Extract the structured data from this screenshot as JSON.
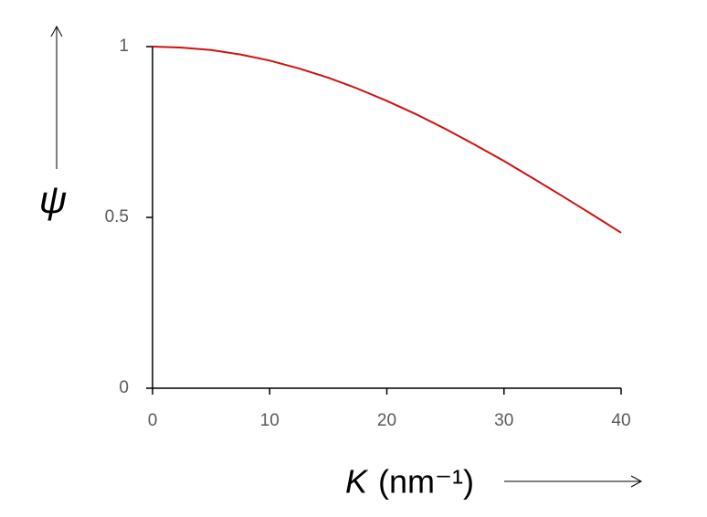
{
  "chart_data": {
    "type": "line",
    "y_label": "ψ",
    "x_label_symbol": "K",
    "x_label_unit": "(nm⁻¹)",
    "x": [
      0,
      2.5,
      5,
      7.5,
      10,
      12.5,
      15,
      17.5,
      20,
      22.5,
      25,
      27.5,
      30,
      32.5,
      35,
      37.5,
      40
    ],
    "values": [
      1,
      0.997,
      0.99,
      0.977,
      0.959,
      0.936,
      0.909,
      0.877,
      0.841,
      0.802,
      0.759,
      0.713,
      0.665,
      0.614,
      0.562,
      0.509,
      0.455
    ],
    "color": "#d01010",
    "xlim": [
      0,
      40
    ],
    "xticks": [
      0,
      10,
      20,
      30,
      40
    ],
    "ylim": [
      0,
      1
    ],
    "yticks": [
      0,
      0.5,
      1
    ],
    "grid": false
  }
}
